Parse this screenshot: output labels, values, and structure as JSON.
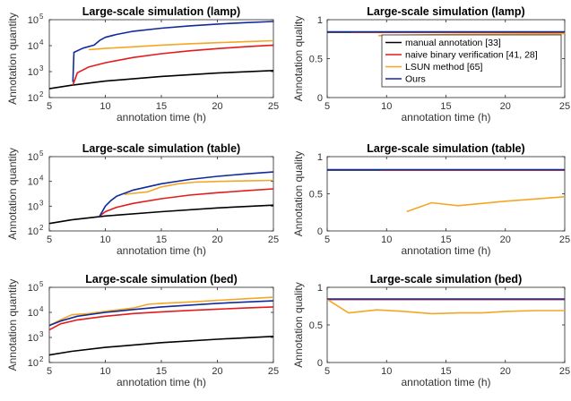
{
  "colors": {
    "manual": "#000000",
    "naive": "#e41a1c",
    "lsun": "#f5a623",
    "ours": "#102a9c"
  },
  "legend": [
    {
      "key": "manual",
      "label": "manual annotation [33]"
    },
    {
      "key": "naive",
      "label": "naive binary verification [41, 28]"
    },
    {
      "key": "lsun",
      "label": "LSUN method [65]"
    },
    {
      "key": "ours",
      "label": "Ours"
    }
  ],
  "chart_data": [
    {
      "type": "line",
      "title": "Large-scale simulation (lamp)",
      "xlabel": "annotation time (h)",
      "ylabel": "Annotation quantity",
      "xlim": [
        5,
        25
      ],
      "ylim": [
        100,
        100000
      ],
      "yscale": "log",
      "xticks": [
        "5",
        "10",
        "15",
        "20",
        "25"
      ],
      "yticks": [
        {
          "base": "10",
          "exp": "2"
        },
        {
          "base": "10",
          "exp": "3"
        },
        {
          "base": "10",
          "exp": "4"
        },
        {
          "base": "10",
          "exp": "5"
        }
      ],
      "series": [
        {
          "key": "manual",
          "name": "manual annotation [33]",
          "x": [
            5,
            7,
            10,
            15,
            20,
            25
          ],
          "y": [
            220,
            300,
            430,
            650,
            880,
            1100
          ]
        },
        {
          "key": "naive",
          "name": "naive binary verification [41, 28]",
          "x": [
            7.1,
            7.5,
            8.5,
            10,
            12.5,
            15,
            17.5,
            20,
            22.5,
            25
          ],
          "y": [
            300,
            900,
            1500,
            2200,
            3500,
            4900,
            6300,
            7700,
            9100,
            10500
          ]
        },
        {
          "key": "lsun",
          "name": "LSUN method [65]",
          "x": [
            8.5,
            10,
            12.5,
            15,
            17.5,
            20,
            22.5,
            25
          ],
          "y": [
            7000,
            7800,
            9000,
            10500,
            11800,
            13000,
            14200,
            15500
          ]
        },
        {
          "key": "ours",
          "name": "Ours",
          "x": [
            7.1,
            7.2,
            8,
            9,
            9.5,
            10,
            11,
            12.5,
            15,
            17.5,
            20,
            22.5,
            25
          ],
          "y": [
            400,
            5500,
            8000,
            10500,
            16000,
            21000,
            27000,
            36000,
            47000,
            58000,
            68000,
            77000,
            85000
          ]
        }
      ]
    },
    {
      "type": "line",
      "title": "Large-scale simulation (lamp)",
      "xlabel": "annotation time (h)",
      "ylabel": "Annotation quality",
      "xlim": [
        5,
        25
      ],
      "ylim": [
        0,
        1
      ],
      "yscale": "linear",
      "xticks": [
        "5",
        "10",
        "15",
        "20",
        "25"
      ],
      "yticks": [
        "0",
        "0.5",
        "1"
      ],
      "legend_position": "top-right",
      "series": [
        {
          "key": "manual",
          "name": "manual annotation [33]",
          "x": [
            5,
            25
          ],
          "y": [
            0.84,
            0.84
          ]
        },
        {
          "key": "naive",
          "name": "naive binary verification [41, 28]",
          "x": [
            7.1,
            25
          ],
          "y": [
            0.84,
            0.84
          ]
        },
        {
          "key": "lsun",
          "name": "LSUN method [65]",
          "x": [
            9.3,
            10,
            12.5,
            15,
            20,
            25
          ],
          "y": [
            0.795,
            0.8,
            0.805,
            0.81,
            0.815,
            0.82
          ]
        },
        {
          "key": "ours",
          "name": "Ours",
          "x": [
            5,
            25
          ],
          "y": [
            0.845,
            0.845
          ]
        }
      ]
    },
    {
      "type": "line",
      "title": "Large-scale simulation (table)",
      "xlabel": "annotation time (h)",
      "ylabel": "Annotation quantity",
      "xlim": [
        5,
        25
      ],
      "ylim": [
        100,
        100000
      ],
      "yscale": "log",
      "xticks": [
        "5",
        "10",
        "15",
        "20",
        "25"
      ],
      "yticks": [
        {
          "base": "10",
          "exp": "2"
        },
        {
          "base": "10",
          "exp": "3"
        },
        {
          "base": "10",
          "exp": "4"
        },
        {
          "base": "10",
          "exp": "5"
        }
      ],
      "series": [
        {
          "key": "manual",
          "name": "manual annotation [33]",
          "x": [
            5,
            7,
            10,
            15,
            20,
            25
          ],
          "y": [
            200,
            280,
            400,
            600,
            850,
            1100
          ]
        },
        {
          "key": "naive",
          "name": "naive binary verification [41, 28]",
          "x": [
            9.5,
            10,
            11,
            12.5,
            15,
            17.5,
            20,
            22.5,
            25
          ],
          "y": [
            400,
            600,
            900,
            1300,
            2000,
            2800,
            3500,
            4200,
            5000
          ]
        },
        {
          "key": "lsun",
          "name": "LSUN method [65]",
          "x": [
            11.7,
            12.5,
            13.8,
            15,
            16.5,
            18,
            20,
            22.5,
            25
          ],
          "y": [
            3000,
            3300,
            3800,
            6000,
            8000,
            9300,
            10000,
            10500,
            11000
          ]
        },
        {
          "key": "ours",
          "name": "Ours",
          "x": [
            9.5,
            10,
            10.5,
            11,
            12.5,
            15,
            17.5,
            20,
            22.5,
            25
          ],
          "y": [
            400,
            1000,
            1700,
            2500,
            4500,
            8000,
            12000,
            16000,
            20000,
            24000
          ]
        }
      ]
    },
    {
      "type": "line",
      "title": "Large-scale simulation (table)",
      "xlabel": "annotation time (h)",
      "ylabel": "Annotation quality",
      "xlim": [
        5,
        25
      ],
      "ylim": [
        0,
        1
      ],
      "yscale": "linear",
      "xticks": [
        "5",
        "10",
        "15",
        "20",
        "25"
      ],
      "yticks": [
        "0",
        "0.5",
        "1"
      ],
      "series": [
        {
          "key": "manual",
          "name": "manual annotation [33]",
          "x": [
            5,
            25
          ],
          "y": [
            0.82,
            0.82
          ]
        },
        {
          "key": "naive",
          "name": "naive binary verification [41, 28]",
          "x": [
            9.5,
            25
          ],
          "y": [
            0.82,
            0.82
          ]
        },
        {
          "key": "lsun",
          "name": "LSUN method [65]",
          "x": [
            11.7,
            13.8,
            16,
            18,
            20,
            22.5,
            25
          ],
          "y": [
            0.26,
            0.38,
            0.34,
            0.37,
            0.4,
            0.43,
            0.46
          ]
        },
        {
          "key": "ours",
          "name": "Ours",
          "x": [
            5,
            25
          ],
          "y": [
            0.825,
            0.825
          ]
        }
      ]
    },
    {
      "type": "line",
      "title": "Large-scale simulation (bed)",
      "xlabel": "annotation time (h)",
      "ylabel": "Annotation quantity",
      "xlim": [
        5,
        25
      ],
      "ylim": [
        100,
        100000
      ],
      "yscale": "log",
      "xticks": [
        "5",
        "10",
        "15",
        "20",
        "25"
      ],
      "yticks": [
        {
          "base": "10",
          "exp": "2"
        },
        {
          "base": "10",
          "exp": "3"
        },
        {
          "base": "10",
          "exp": "4"
        },
        {
          "base": "10",
          "exp": "5"
        }
      ],
      "series": [
        {
          "key": "manual",
          "name": "manual annotation [33]",
          "x": [
            5,
            7,
            10,
            15,
            20,
            25
          ],
          "y": [
            200,
            280,
            400,
            620,
            850,
            1100
          ]
        },
        {
          "key": "naive",
          "name": "naive binary verification [41, 28]",
          "x": [
            5,
            6,
            7.5,
            10,
            12.5,
            15,
            17.5,
            20,
            22.5,
            25
          ],
          "y": [
            2000,
            3500,
            5000,
            7000,
            9000,
            10500,
            12000,
            13500,
            15000,
            16500
          ]
        },
        {
          "key": "lsun",
          "name": "LSUN method [65]",
          "x": [
            5,
            6,
            7,
            8.5,
            10,
            12.5,
            13.8,
            15,
            17.5,
            20,
            22.5,
            25
          ],
          "y": [
            3000,
            5000,
            8000,
            9000,
            11000,
            15000,
            21000,
            23000,
            26000,
            30000,
            35000,
            40000
          ]
        },
        {
          "key": "ours",
          "name": "Ours",
          "x": [
            5,
            6,
            7.5,
            10,
            12.5,
            15,
            17.5,
            20,
            22.5,
            25
          ],
          "y": [
            3000,
            4500,
            7000,
            10000,
            13000,
            16500,
            19500,
            23000,
            26000,
            29000
          ]
        }
      ]
    },
    {
      "type": "line",
      "title": "Large-scale simulation (bed)",
      "xlabel": "annotation time (h)",
      "ylabel": "Annotation quality",
      "xlim": [
        5,
        25
      ],
      "ylim": [
        0,
        1
      ],
      "yscale": "linear",
      "xticks": [
        "5",
        "10",
        "15",
        "20",
        "25"
      ],
      "yticks": [
        "0",
        "0.5",
        "1"
      ],
      "series": [
        {
          "key": "manual",
          "name": "manual annotation [33]",
          "x": [
            5,
            25
          ],
          "y": [
            0.84,
            0.84
          ]
        },
        {
          "key": "naive",
          "name": "naive binary verification [41, 28]",
          "x": [
            5,
            25
          ],
          "y": [
            0.84,
            0.84
          ]
        },
        {
          "key": "lsun",
          "name": "LSUN method [65]",
          "x": [
            5,
            6.8,
            9.2,
            11.5,
            13.8,
            16,
            18,
            20,
            22.5,
            25
          ],
          "y": [
            0.84,
            0.66,
            0.7,
            0.68,
            0.65,
            0.66,
            0.66,
            0.68,
            0.69,
            0.69
          ]
        },
        {
          "key": "ours",
          "name": "Ours",
          "x": [
            5,
            25
          ],
          "y": [
            0.845,
            0.845
          ]
        }
      ]
    }
  ]
}
